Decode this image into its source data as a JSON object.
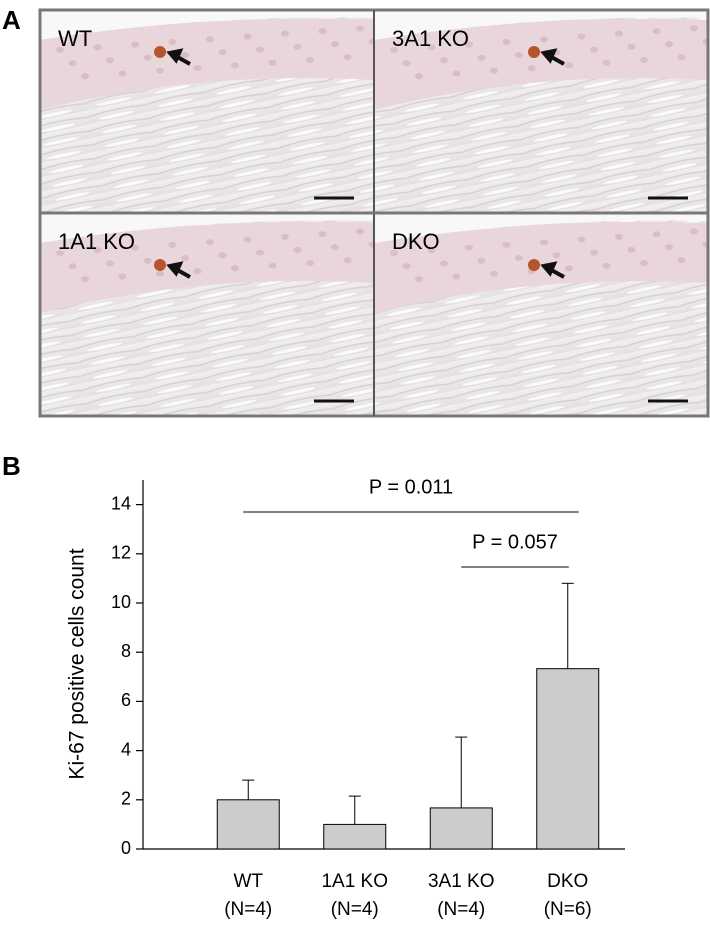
{
  "panels": [
    "A",
    "B"
  ],
  "micrographs": [
    "WT",
    "3A1 KO",
    "1A1 KO",
    "DKO"
  ],
  "chart_data": {
    "type": "bar",
    "y_label": "Ki-67 positive cells count",
    "categories": [
      "WT",
      "1A1 KO",
      "3A1 KO",
      "DKO"
    ],
    "category_sublabels": [
      "(N=4)",
      "(N=4)",
      "(N=4)",
      "(N=6)"
    ],
    "values": [
      2,
      1,
      1.67,
      7.33
    ],
    "errors": [
      0.8,
      1.15,
      2.88,
      3.47
    ],
    "color": "#cccccc",
    "ylim": [
      0,
      15
    ],
    "yticks": [
      0,
      2,
      4,
      6,
      8,
      10,
      12,
      14
    ],
    "annotations": [
      "P = 0.011",
      "P = 0.057"
    ]
  }
}
